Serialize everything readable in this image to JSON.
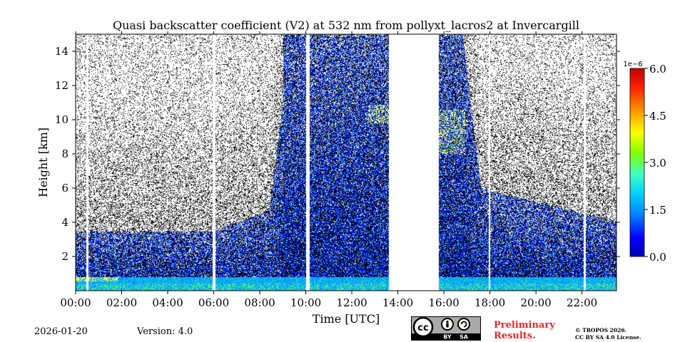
{
  "chart_data": {
    "type": "heatmap",
    "title": "Quasi backscatter coefficient (V2) at 532 nm from pollyxt_lacros2 at Invercargill",
    "xlabel": "Time [UTC]",
    "ylabel": "Height [km]",
    "xlim": [
      0,
      23.5
    ],
    "ylim": [
      0,
      15
    ],
    "x_ticks": [
      0,
      2,
      4,
      6,
      8,
      10,
      12,
      14,
      16,
      18,
      20,
      22
    ],
    "x_tick_labels": [
      "00:00",
      "02:00",
      "04:00",
      "06:00",
      "08:00",
      "10:00",
      "12:00",
      "14:00",
      "16:00",
      "18:00",
      "20:00",
      "22:00"
    ],
    "y_ticks": [
      2,
      4,
      6,
      8,
      10,
      12,
      14
    ],
    "y_tick_labels": [
      "2",
      "4",
      "6",
      "8",
      "10",
      "12",
      "14"
    ],
    "colorbar": {
      "min": 0,
      "max": 6e-06,
      "multiplier_label": "1e−6",
      "ticks": [
        0,
        1.5,
        3,
        4.5,
        6
      ],
      "tick_labels": [
        "0.0",
        "1.5",
        "3.0",
        "4.5",
        "6.0"
      ],
      "colormap": [
        "#0000b0",
        "#0000ff",
        "#0080ff",
        "#00d0ff",
        "#40ffc0",
        "#80ff00",
        "#ffff00",
        "#ff9000",
        "#ff2000",
        "#c00000"
      ]
    },
    "data_gaps_hours": [
      [
        0.45,
        0.55
      ],
      [
        5.95,
        6.05
      ],
      [
        10.0,
        10.15
      ],
      [
        13.6,
        15.75
      ],
      [
        17.95,
        18.0
      ],
      [
        22.05,
        22.15
      ]
    ],
    "features": {
      "boundary_layer_top_km": 0.8,
      "cloud_hours": [
        12.6,
        16.9
      ],
      "cloud_height_km": [
        8,
        11
      ]
    }
  },
  "footer": {
    "date": "2026-01-20",
    "version": "Version: 4.0",
    "preliminary_line1": "Preliminary",
    "preliminary_line2": "Results.",
    "copyright_line1": "© TROPOS 2026.",
    "copyright_line2": "CC BY SA 4.0 License.",
    "license_badge": {
      "cc": "cc",
      "by": "BY",
      "sa": "SA"
    }
  }
}
